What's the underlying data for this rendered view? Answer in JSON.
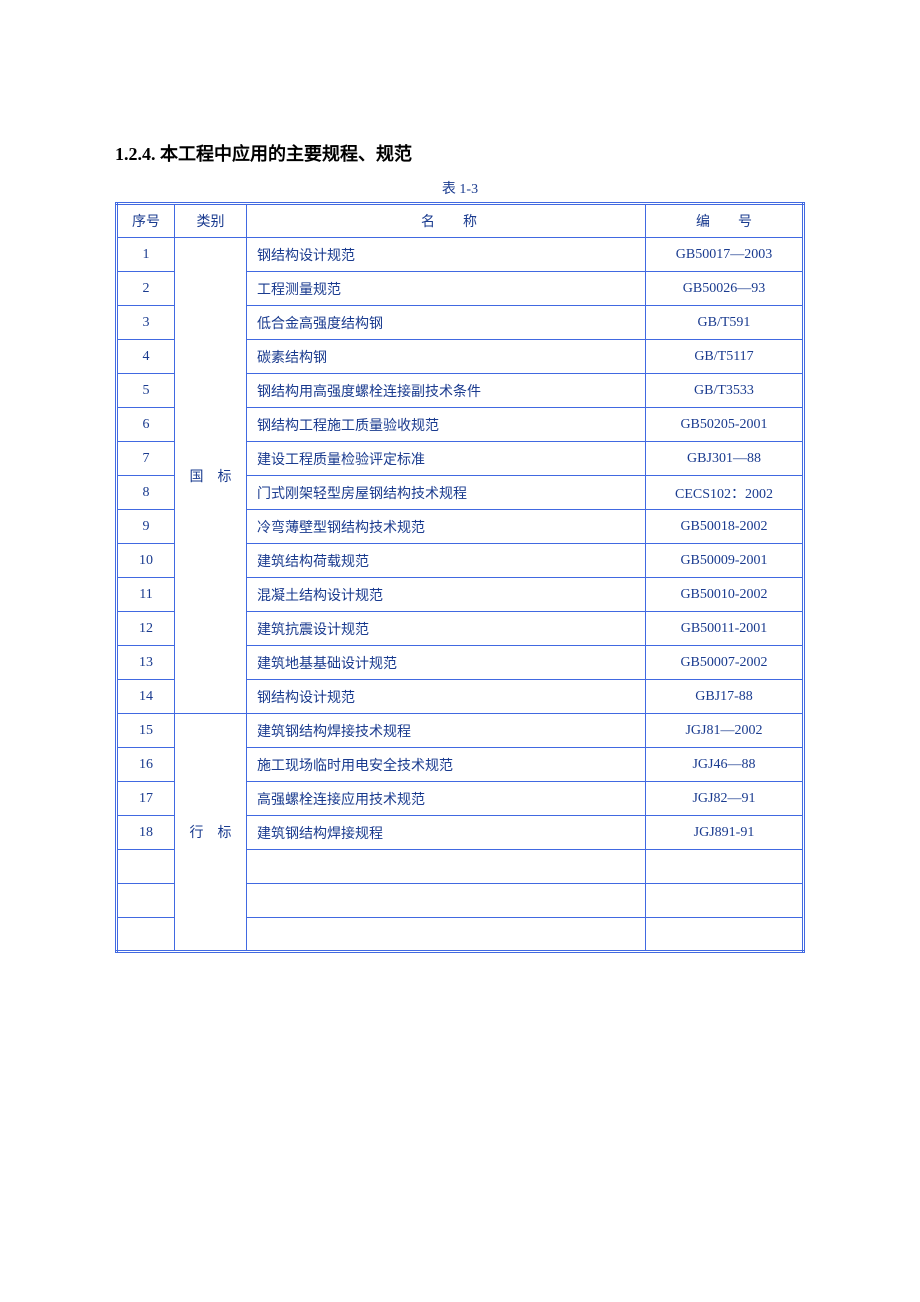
{
  "heading": "1.2.4. 本工程中应用的主要规程、规范",
  "tableCaption": "表 1-3",
  "headers": {
    "seq": "序号",
    "category": "类别",
    "name": "名　　称",
    "code": "编　　号"
  },
  "categories": {
    "national": "国　标",
    "industry": "行　标"
  },
  "nationalRows": [
    {
      "seq": "1",
      "name": "钢结构设计规范",
      "code": "GB50017—2003"
    },
    {
      "seq": "2",
      "name": "工程测量规范",
      "code": "GB50026—93"
    },
    {
      "seq": "3",
      "name": "低合金高强度结构钢",
      "code": "GB/T591"
    },
    {
      "seq": "4",
      "name": "碳素结构钢",
      "code": "GB/T5117"
    },
    {
      "seq": "5",
      "name": "钢结构用高强度螺栓连接副技术条件",
      "code": "GB/T3533"
    },
    {
      "seq": "6",
      "name": "钢结构工程施工质量验收规范",
      "code": "GB50205-2001"
    },
    {
      "seq": "7",
      "name": "建设工程质量检验评定标准",
      "code": "GBJ301—88"
    },
    {
      "seq": "8",
      "name": "门式刚架轻型房屋钢结构技术规程",
      "code": "CECS102：2002"
    },
    {
      "seq": "9",
      "name": "冷弯薄壁型钢结构技术规范",
      "code": "GB50018-2002"
    },
    {
      "seq": "10",
      "name": "建筑结构荷载规范",
      "code": "GB50009-2001"
    },
    {
      "seq": "11",
      "name": "混凝土结构设计规范",
      "code": "GB50010-2002"
    },
    {
      "seq": "12",
      "name": "建筑抗震设计规范",
      "code": "GB50011-2001"
    },
    {
      "seq": "13",
      "name": "建筑地基基础设计规范",
      "code": "GB50007-2002"
    },
    {
      "seq": "14",
      "name": "钢结构设计规范",
      "code": "GBJ17-88"
    }
  ],
  "industryRows": [
    {
      "seq": "15",
      "name": "建筑钢结构焊接技术规程",
      "code": "JGJ81—2002"
    },
    {
      "seq": "16",
      "name": "施工现场临时用电安全技术规范",
      "code": "JGJ46—88"
    },
    {
      "seq": "17",
      "name": "高强螺栓连接应用技术规范",
      "code": "JGJ82—91"
    },
    {
      "seq": "18",
      "name": "建筑钢结构焊接规程",
      "code": "JGJ891-91"
    },
    {
      "seq": "",
      "name": "",
      "code": ""
    },
    {
      "seq": "",
      "name": "",
      "code": ""
    },
    {
      "seq": "",
      "name": "",
      "code": ""
    }
  ],
  "colors": {
    "text_primary": "#1a3b8f",
    "heading_color": "#000000",
    "border_color": "#4169e1",
    "background": "#ffffff"
  }
}
